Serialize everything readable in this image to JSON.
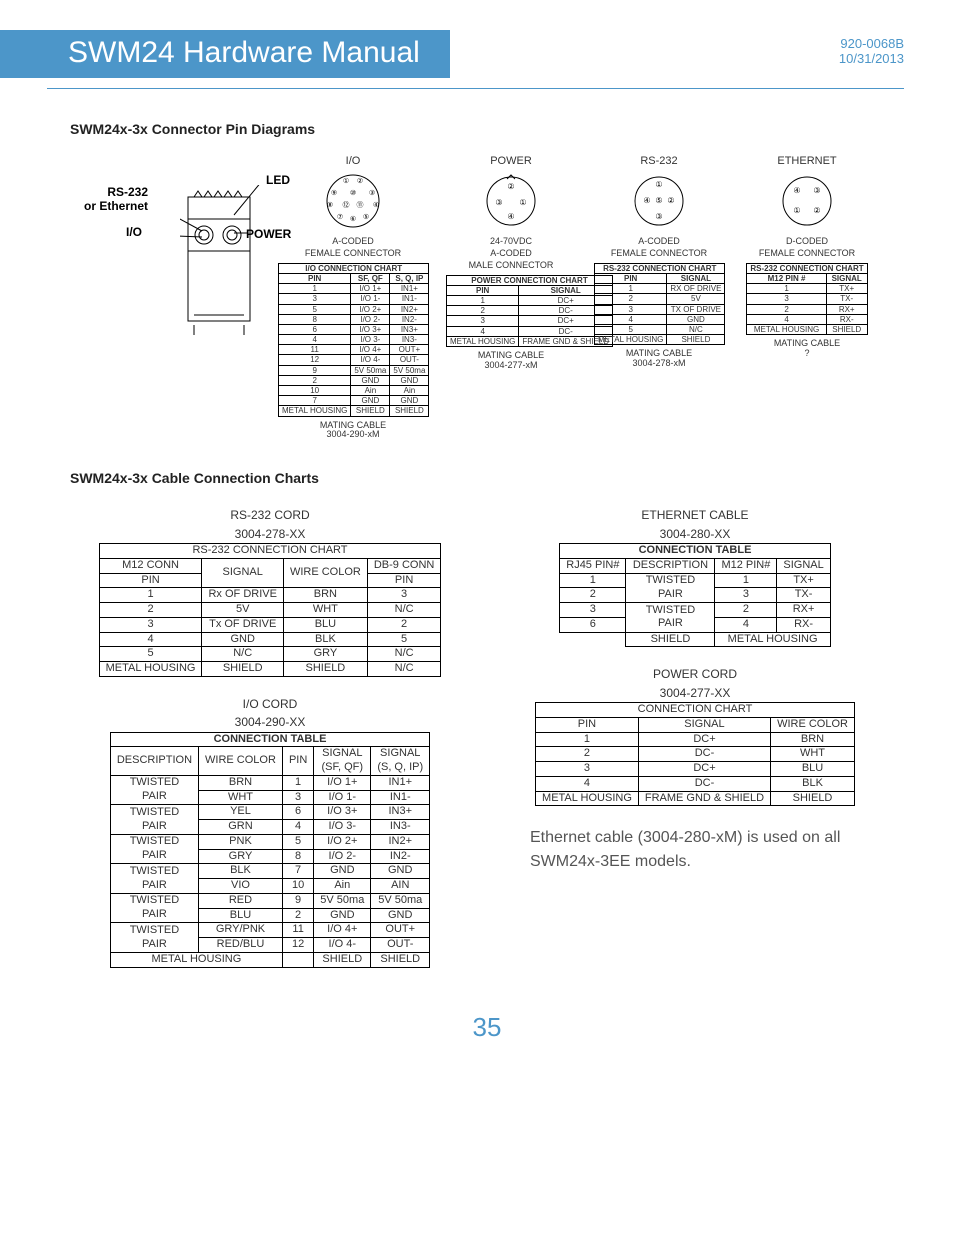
{
  "header": {
    "title": "SWM24 Hardware Manual",
    "doc_no": "920-0068B",
    "doc_date": "10/31/2013",
    "accent_color": "#4c96c9"
  },
  "section1_title": "SWM24x-3x Connector Pin Diagrams",
  "section2_title": "SWM24x-3x Cable Connection Charts",
  "device_labels": {
    "led": "LED",
    "rs_eth": "RS-232\nor Ethernet",
    "io": "I/O",
    "power": "POWER"
  },
  "connectors": {
    "io": {
      "title": "I/O",
      "sub1": "A-CODED",
      "sub2": "FEMALE CONNECTOR",
      "pins": [
        1,
        2,
        3,
        4,
        5,
        6,
        7,
        8,
        9,
        10,
        11,
        12
      ],
      "table_header": "I/O CONNECTION CHART",
      "cols": [
        "PIN",
        "SF, QF",
        "S, Q, IP"
      ],
      "rows": [
        [
          "1",
          "I/O 1+",
          "IN1+"
        ],
        [
          "3",
          "I/O 1-",
          "IN1-"
        ],
        [
          "5",
          "I/O 2+",
          "IN2+"
        ],
        [
          "8",
          "I/O 2-",
          "IN2-"
        ],
        [
          "6",
          "I/O 3+",
          "IN3+"
        ],
        [
          "4",
          "I/O 3-",
          "IN3-"
        ],
        [
          "11",
          "I/O 4+",
          "OUT+"
        ],
        [
          "12",
          "I/O 4-",
          "OUT-"
        ],
        [
          "9",
          "5V 50ma",
          "5V 50ma"
        ],
        [
          "2",
          "GND",
          "GND"
        ],
        [
          "10",
          "Ain",
          "Ain"
        ],
        [
          "7",
          "GND",
          "GND"
        ],
        [
          "METAL HOUSING",
          "SHIELD",
          "SHIELD"
        ]
      ],
      "mating": "MATING CABLE\n3004-290-xM"
    },
    "power": {
      "title": "POWER",
      "sub0": "24-70VDC",
      "sub1": "A-CODED",
      "sub2": "MALE CONNECTOR",
      "table_header": "POWER CONNECTION CHART",
      "cols": [
        "PIN",
        "SIGNAL"
      ],
      "rows": [
        [
          "1",
          "DC+"
        ],
        [
          "2",
          "DC-"
        ],
        [
          "3",
          "DC+"
        ],
        [
          "4",
          "DC-"
        ],
        [
          "METAL HOUSING",
          "FRAME GND & SHIELD"
        ]
      ],
      "mating": "MATING CABLE\n3004-277-xM"
    },
    "rs232": {
      "title": "RS-232",
      "sub1": "A-CODED",
      "sub2": "FEMALE CONNECTOR",
      "table_header": "RS-232 CONNECTION CHART",
      "cols": [
        "PIN",
        "SIGNAL"
      ],
      "rows": [
        [
          "1",
          "RX OF DRIVE"
        ],
        [
          "2",
          "5V"
        ],
        [
          "3",
          "TX OF DRIVE"
        ],
        [
          "4",
          "GND"
        ],
        [
          "5",
          "N/C"
        ],
        [
          "METAL HOUSING",
          "SHIELD"
        ]
      ],
      "mating": "MATING CABLE\n3004-278-xM"
    },
    "eth": {
      "title": "ETHERNET",
      "sub1": "D-CODED",
      "sub2": "FEMALE CONNECTOR",
      "table_header": "RS-232 CONNECTION CHART",
      "cols": [
        "M12 PIN #",
        "SIGNAL"
      ],
      "rows": [
        [
          "1",
          "TX+"
        ],
        [
          "3",
          "TX-"
        ],
        [
          "2",
          "RX+"
        ],
        [
          "4",
          "RX-"
        ],
        [
          "METAL HOUSING",
          "SHIELD"
        ]
      ],
      "mating": "MATING CABLE\n?"
    }
  },
  "rs232_cord": {
    "title1": "RS-232 CORD",
    "title2": "3004-278-XX",
    "header": "RS-232 CONNECTION CHART",
    "cols": [
      "M12 CONN PIN",
      "SIGNAL",
      "WIRE COLOR",
      "DB-9 CONN PIN"
    ],
    "rows": [
      [
        "1",
        "Rx OF DRIVE",
        "BRN",
        "3"
      ],
      [
        "2",
        "5V",
        "WHT",
        "N/C"
      ],
      [
        "3",
        "Tx OF DRIVE",
        "BLU",
        "2"
      ],
      [
        "4",
        "GND",
        "BLK",
        "5"
      ],
      [
        "5",
        "N/C",
        "GRY",
        "N/C"
      ],
      [
        "METAL HOUSING",
        "SHIELD",
        "SHIELD",
        "N/C"
      ]
    ]
  },
  "io_cord": {
    "title1": "I/O CORD",
    "title2": "3004-290-XX",
    "header": "CONNECTION TABLE",
    "rows": [
      [
        "TWISTED PAIR",
        "BRN",
        "1",
        "I/O 1+",
        "IN1+"
      ],
      [
        "",
        "WHT",
        "3",
        "I/O 1-",
        "IN1-"
      ],
      [
        "TWISTED PAIR",
        "YEL",
        "6",
        "I/O 3+",
        "IN3+"
      ],
      [
        "",
        "GRN",
        "4",
        "I/O 3-",
        "IN3-"
      ],
      [
        "TWISTED PAIR",
        "PNK",
        "5",
        "I/O 2+",
        "IN2+"
      ],
      [
        "",
        "GRY",
        "8",
        "I/O 2-",
        "IN2-"
      ],
      [
        "TWISTED PAIR",
        "BLK",
        "7",
        "GND",
        "GND"
      ],
      [
        "",
        "VIO",
        "10",
        "Ain",
        "AIN"
      ],
      [
        "TWISTED PAIR",
        "RED",
        "9",
        "5V 50ma",
        "5V 50ma"
      ],
      [
        "",
        "BLU",
        "2",
        "GND",
        "GND"
      ],
      [
        "TWISTED PAIR",
        "GRY/PNK",
        "11",
        "I/O 4+",
        "OUT+"
      ],
      [
        "",
        "RED/BLU",
        "12",
        "I/O 4-",
        "OUT-"
      ]
    ],
    "footer": [
      "METAL HOUSING",
      "SHIELD",
      "SHIELD"
    ]
  },
  "eth_cable": {
    "title1": "ETHERNET CABLE",
    "title2": "3004-280-XX",
    "header": "CONNECTION TABLE",
    "rows": [
      [
        "1",
        "TWISTED PAIR",
        "1",
        "TX+"
      ],
      [
        "2",
        "",
        "3",
        "TX-"
      ],
      [
        "3",
        "TWISTED PAIR",
        "2",
        "RX+"
      ],
      [
        "6",
        "",
        "4",
        "RX-"
      ]
    ],
    "footer": [
      "SHIELD",
      "METAL HOUSING"
    ]
  },
  "power_cord": {
    "title1": "POWER CORD",
    "title2": "3004-277-XX",
    "header": "CONNECTION CHART",
    "cols": [
      "PIN",
      "SIGNAL",
      "WIRE COLOR"
    ],
    "rows": [
      [
        "1",
        "DC+",
        "BRN"
      ],
      [
        "2",
        "DC-",
        "WHT"
      ],
      [
        "3",
        "DC+",
        "BLU"
      ],
      [
        "4",
        "DC-",
        "BLK"
      ],
      [
        "METAL HOUSING",
        "FRAME GND & SHIELD",
        "SHIELD"
      ]
    ]
  },
  "note": "Ethernet cable (3004-280-xM) is used on all SWM24x-3EE models.",
  "page_number": "35"
}
